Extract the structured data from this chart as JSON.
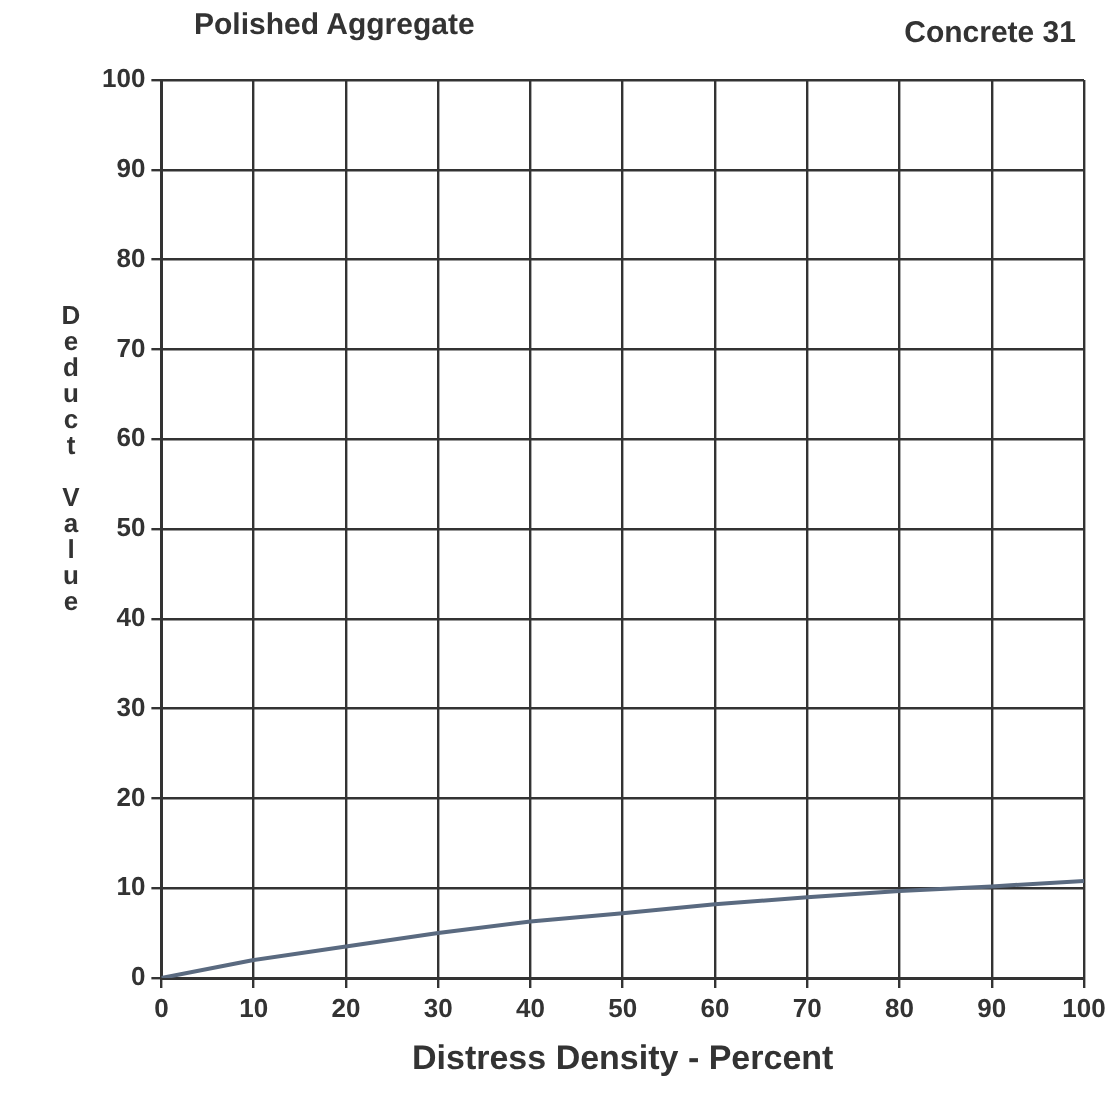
{
  "chart_data": {
    "type": "line",
    "title": "Polished Aggregate",
    "subtitle": "Concrete 31",
    "xlabel": "Distress Density - Percent",
    "ylabel": "Deduct Value",
    "x": [
      0,
      10,
      20,
      30,
      40,
      50,
      60,
      70,
      80,
      90,
      100
    ],
    "series": [
      {
        "color": "#5a6a80",
        "values": [
          0,
          2,
          3.5,
          5,
          6.3,
          7.2,
          8.2,
          9,
          9.7,
          10.2,
          10.8
        ]
      }
    ],
    "xlim": [
      0,
      100
    ],
    "xticks": [
      0,
      10,
      20,
      30,
      40,
      50,
      60,
      70,
      80,
      90,
      100
    ],
    "ylim": [
      0,
      100
    ],
    "yticks": [
      0,
      10,
      20,
      30,
      40,
      50,
      60,
      70,
      80,
      90,
      100
    ],
    "grid": true,
    "legend": false,
    "marker": "none",
    "line_style": "solid"
  }
}
